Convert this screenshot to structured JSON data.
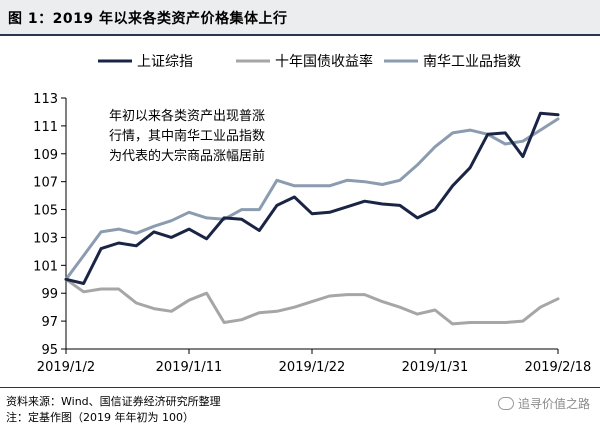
{
  "figure": {
    "title": "图 1：2019 年以来各类资产价格集体上行",
    "source_line1": "资料来源：Wind、国信证券经济研究所整理",
    "source_line2": "注：定基作图（2019 年年初为 100）",
    "watermark": "追寻价值之路"
  },
  "chart_data": {
    "type": "line",
    "title": "",
    "xlabel": "",
    "ylabel": "",
    "ylim": [
      95,
      113
    ],
    "yticks": [
      95,
      97,
      99,
      101,
      103,
      105,
      107,
      109,
      111,
      113
    ],
    "xticks": [
      "2019/1/2",
      "2019/1/11",
      "2019/1/22",
      "2019/1/31",
      "2019/2/18"
    ],
    "grid": false,
    "legend": "top",
    "annotation": [
      "年初以来各类资产出现普涨",
      "行情，其中南华工业品指数",
      "为代表的大宗商品涨幅居前"
    ],
    "x": [
      "2019/1/2",
      "2019/1/3",
      "2019/1/4",
      "2019/1/7",
      "2019/1/8",
      "2019/1/9",
      "2019/1/10",
      "2019/1/11",
      "2019/1/14",
      "2019/1/15",
      "2019/1/16",
      "2019/1/17",
      "2019/1/18",
      "2019/1/21",
      "2019/1/22",
      "2019/1/23",
      "2019/1/24",
      "2019/1/25",
      "2019/1/28",
      "2019/1/29",
      "2019/1/30",
      "2019/1/31",
      "2019/2/1",
      "2019/2/11",
      "2019/2/12",
      "2019/2/13",
      "2019/2/14",
      "2019/2/15",
      "2019/2/18"
    ],
    "series": [
      {
        "name": "上证综指",
        "color": "#1a2545",
        "values": [
          100.0,
          99.7,
          102.2,
          102.6,
          102.4,
          103.4,
          103.0,
          103.6,
          102.9,
          104.4,
          104.3,
          103.5,
          105.3,
          105.9,
          104.7,
          104.8,
          105.2,
          105.6,
          105.4,
          105.3,
          104.4,
          105.0,
          106.7,
          108.0,
          110.4,
          110.5,
          108.8,
          111.9,
          111.8
        ]
      },
      {
        "name": "十年国债收益率",
        "color": "#a6a6a6",
        "values": [
          100.0,
          99.1,
          99.3,
          99.3,
          98.3,
          97.9,
          97.7,
          98.5,
          99.0,
          96.9,
          97.1,
          97.6,
          97.7,
          98.0,
          98.4,
          98.8,
          98.9,
          98.9,
          98.4,
          98.0,
          97.5,
          97.8,
          96.8,
          96.9,
          96.9,
          96.9,
          97.0,
          98.0,
          98.6
        ]
      },
      {
        "name": "南华工业品指数",
        "color": "#8b9cb0",
        "values": [
          100.0,
          101.7,
          103.4,
          103.6,
          103.3,
          103.8,
          104.2,
          104.8,
          104.4,
          104.3,
          105.0,
          105.0,
          107.1,
          106.7,
          106.7,
          106.7,
          107.1,
          107.0,
          106.8,
          107.1,
          108.2,
          109.5,
          110.5,
          110.7,
          110.4,
          109.7,
          109.9,
          110.7,
          111.5
        ]
      }
    ]
  }
}
